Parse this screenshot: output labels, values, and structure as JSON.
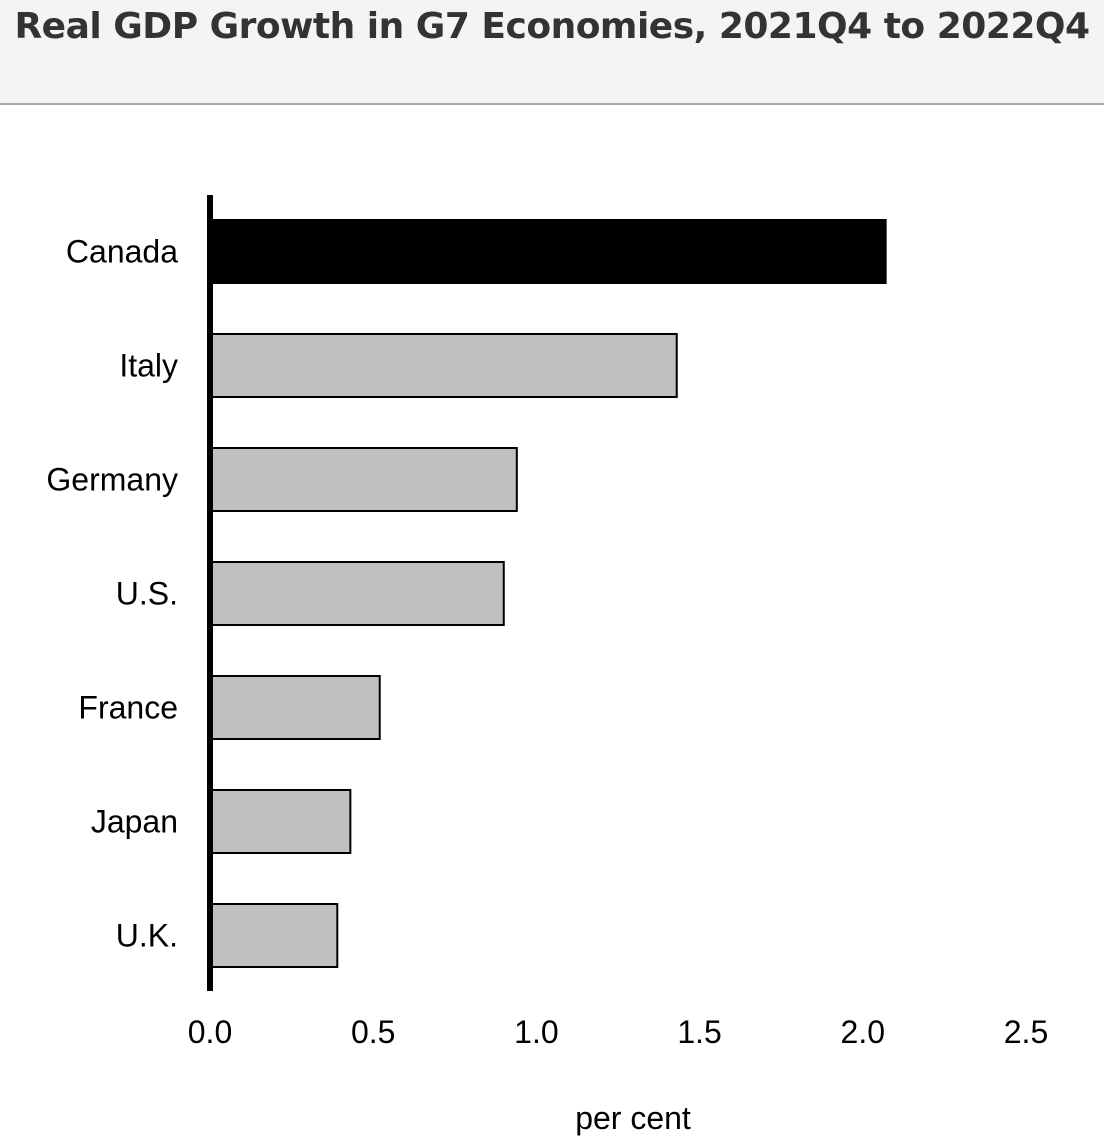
{
  "title": "Real GDP Growth in G7 Economies, 2021Q4 to 2022Q4",
  "chart_data": {
    "type": "bar",
    "orientation": "horizontal",
    "categories": [
      "Canada",
      "Italy",
      "Germany",
      "U.S.",
      "France",
      "Japan",
      "U.K."
    ],
    "values": [
      2.07,
      1.43,
      0.94,
      0.9,
      0.52,
      0.43,
      0.39
    ],
    "highlight": "Canada",
    "colors": {
      "highlight": "#000000",
      "default": "#c0c0c0",
      "outline": "#000000"
    },
    "title": "Real GDP Growth in G7 Economies, 2021Q4 to 2022Q4",
    "xlabel": "per cent",
    "ylabel": "",
    "xlim": [
      0,
      2.5
    ],
    "xticks": [
      0.0,
      0.5,
      1.0,
      1.5,
      2.0,
      2.5
    ],
    "xtick_labels": [
      "0.0",
      "0.5",
      "1.0",
      "1.5",
      "2.0",
      "2.5"
    ],
    "grid": false,
    "legend": "none"
  }
}
